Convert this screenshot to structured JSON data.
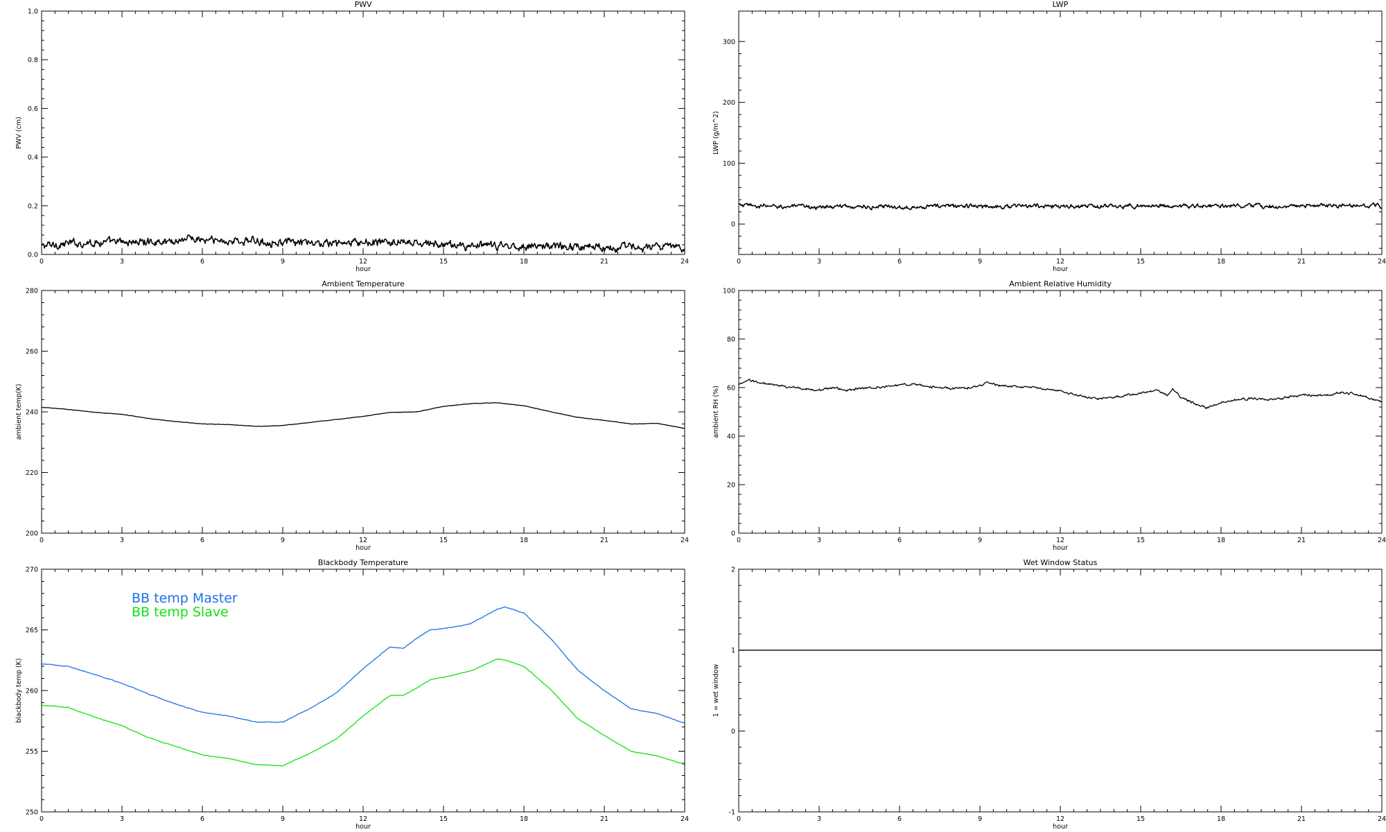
{
  "figure": {
    "background": "#ffffff",
    "axis_color": "#000000"
  },
  "chart_data": [
    {
      "type": "line",
      "title": "PWV",
      "xlabel": "hour",
      "ylabel": "PWV (cm)",
      "xlim": [
        0,
        24
      ],
      "ylim": [
        0,
        1.0
      ],
      "xticks": [
        0,
        3,
        6,
        9,
        12,
        15,
        18,
        21,
        24
      ],
      "yticks": [
        0.0,
        0.2,
        0.4,
        0.6,
        0.8,
        1.0
      ],
      "ytick_decimals": 1,
      "grid": false,
      "series": [
        {
          "color": "#000000",
          "noise": 0.012,
          "x": [
            0,
            1,
            2,
            3,
            4,
            5,
            5.5,
            6,
            7,
            8,
            9,
            10,
            11,
            12,
            13,
            14,
            15,
            16,
            17,
            18,
            19,
            20,
            21,
            22,
            23,
            24
          ],
          "y": [
            0.035,
            0.045,
            0.05,
            0.05,
            0.052,
            0.055,
            0.07,
            0.058,
            0.055,
            0.055,
            0.05,
            0.045,
            0.045,
            0.048,
            0.05,
            0.045,
            0.04,
            0.035,
            0.035,
            0.035,
            0.035,
            0.033,
            0.032,
            0.03,
            0.03,
            0.03
          ]
        }
      ]
    },
    {
      "type": "line",
      "title": "LWP",
      "xlabel": "hour",
      "ylabel": "LWP (g/m^2)",
      "xlim": [
        0,
        24
      ],
      "ylim": [
        -50,
        350
      ],
      "xticks": [
        0,
        3,
        6,
        9,
        12,
        15,
        18,
        21,
        24
      ],
      "yticks": [
        0,
        100,
        200,
        300
      ],
      "ytick_decimals": 0,
      "grid": false,
      "series": [
        {
          "color": "#000000",
          "noise": 2.5,
          "x": [
            0,
            1,
            2,
            3,
            4,
            5,
            6,
            7,
            8,
            9,
            10,
            11,
            12,
            13,
            14,
            15,
            16,
            17,
            18,
            19,
            20,
            21,
            22,
            23,
            24
          ],
          "y": [
            31,
            29,
            29,
            28,
            29,
            28,
            28,
            29,
            30,
            29,
            29,
            30,
            29,
            29,
            29,
            30,
            30,
            29,
            30,
            29,
            29,
            30,
            30,
            30,
            30
          ]
        }
      ]
    },
    {
      "type": "line",
      "title": "Ambient Temperature",
      "xlabel": "hour",
      "ylabel": "ambient temp(K)",
      "xlim": [
        0,
        24
      ],
      "ylim": [
        200,
        280
      ],
      "xticks": [
        0,
        3,
        6,
        9,
        12,
        15,
        18,
        21,
        24
      ],
      "yticks": [
        200,
        220,
        240,
        260,
        280
      ],
      "ytick_decimals": 0,
      "grid": false,
      "series": [
        {
          "color": "#000000",
          "noise": 0.05,
          "x": [
            0,
            1,
            2,
            3,
            4,
            5,
            6,
            7,
            8,
            9,
            10,
            11,
            12,
            13,
            14,
            15,
            16,
            17,
            18,
            19,
            20,
            21,
            22,
            23,
            24
          ],
          "y": [
            241.5,
            240.8,
            239.8,
            239.2,
            237.8,
            236.8,
            236.0,
            235.8,
            235.2,
            235.5,
            236.5,
            237.5,
            238.5,
            239.8,
            240.0,
            241.8,
            242.7,
            243.0,
            242.0,
            240.0,
            238.2,
            237.2,
            236.0,
            236.2,
            234.5
          ]
        }
      ]
    },
    {
      "type": "line",
      "title": "Ambient Relative Humidity",
      "xlabel": "hour",
      "ylabel": "ambient RH (%)",
      "xlim": [
        0,
        24
      ],
      "ylim": [
        0,
        100
      ],
      "xticks": [
        0,
        3,
        6,
        9,
        12,
        15,
        18,
        21,
        24
      ],
      "yticks": [
        0,
        20,
        40,
        60,
        80,
        100
      ],
      "ytick_decimals": 0,
      "grid": false,
      "series": [
        {
          "color": "#000000",
          "noise": 0.35,
          "x": [
            0,
            0.4,
            1,
            2,
            3,
            3.5,
            4,
            5,
            6,
            6.5,
            7,
            8,
            9,
            9.2,
            10,
            11,
            12,
            13,
            13.5,
            14,
            15,
            15.5,
            16,
            16.2,
            16.5,
            17,
            17.5,
            18,
            19,
            20,
            21,
            22,
            22.5,
            23,
            24
          ],
          "y": [
            61,
            63,
            61.5,
            60,
            59,
            60,
            59,
            60,
            61,
            61.5,
            60.5,
            59.5,
            60.5,
            62,
            60.5,
            60,
            58.5,
            56,
            55.5,
            56,
            57.5,
            59,
            57,
            59.5,
            56,
            53.5,
            51.5,
            54,
            55.5,
            55,
            57,
            57,
            58,
            57.5,
            54
          ]
        }
      ]
    },
    {
      "type": "line",
      "title": "Blackbody Temperature",
      "xlabel": "hour",
      "ylabel": "blackbody temp (K)",
      "xlim": [
        0,
        24
      ],
      "ylim": [
        250,
        270
      ],
      "xticks": [
        0,
        3,
        6,
        9,
        12,
        15,
        18,
        21,
        24
      ],
      "yticks": [
        250,
        255,
        260,
        265,
        270
      ],
      "ytick_decimals": 0,
      "grid": false,
      "legend": "top-left",
      "series": [
        {
          "name": "BB temp Master",
          "color": "#1e6fe8",
          "noise": 0.02,
          "x": [
            0,
            1,
            2,
            3,
            4,
            5,
            6,
            7,
            8,
            9,
            10,
            11,
            12,
            13,
            13.5,
            14,
            14.5,
            15,
            16,
            17,
            17.3,
            18,
            19,
            20,
            21,
            22,
            23,
            24
          ],
          "y": [
            262.2,
            262.0,
            261.3,
            260.6,
            259.7,
            258.9,
            258.2,
            257.9,
            257.4,
            257.4,
            258.5,
            259.8,
            261.8,
            263.6,
            263.5,
            264.3,
            265.0,
            265.1,
            265.5,
            266.7,
            266.9,
            266.4,
            264.3,
            261.7,
            260.0,
            258.5,
            258.1,
            257.3
          ]
        },
        {
          "name": "BB temp Slave",
          "color": "#12e212",
          "noise": 0.02,
          "x": [
            0,
            1,
            2,
            3,
            4,
            5,
            6,
            7,
            8,
            9,
            10,
            11,
            12,
            13,
            13.5,
            14,
            14.5,
            15,
            16,
            17,
            17.3,
            18,
            19,
            20,
            21,
            22,
            23,
            24
          ],
          "y": [
            258.8,
            258.6,
            257.8,
            257.1,
            256.1,
            255.4,
            254.7,
            254.4,
            253.9,
            253.8,
            254.8,
            256.0,
            257.9,
            259.6,
            259.6,
            260.2,
            260.9,
            261.1,
            261.6,
            262.6,
            262.5,
            262.0,
            260.1,
            257.7,
            256.3,
            255.0,
            254.6,
            253.9
          ]
        }
      ]
    },
    {
      "type": "line",
      "title": "Wet Window Status",
      "xlabel": "hour",
      "ylabel": "1 = wet window",
      "xlim": [
        0,
        24
      ],
      "ylim": [
        -1,
        2
      ],
      "xticks": [
        0,
        3,
        6,
        9,
        12,
        15,
        18,
        21,
        24
      ],
      "yticks": [
        -1,
        0,
        1,
        2
      ],
      "ytick_decimals": 0,
      "grid": false,
      "series": [
        {
          "color": "#000000",
          "noise": 0,
          "x": [
            0,
            24
          ],
          "y": [
            1,
            1
          ]
        }
      ]
    }
  ]
}
